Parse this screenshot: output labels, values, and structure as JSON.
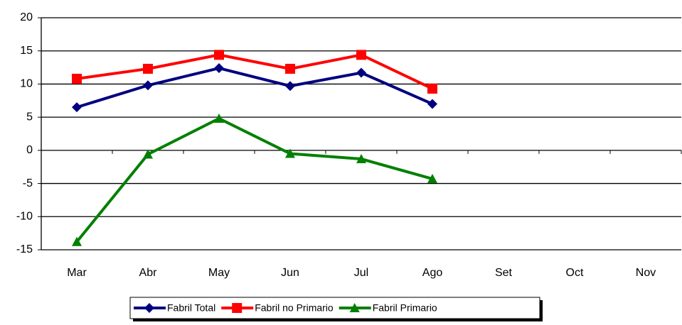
{
  "chart_data": {
    "type": "line",
    "categories": [
      "Mar",
      "Abr",
      "May",
      "Jun",
      "Jul",
      "Ago",
      "Set",
      "Oct",
      "Nov"
    ],
    "series": [
      {
        "name": "Fabril Total",
        "color": "#000080",
        "marker": "diamond",
        "values": [
          6.5,
          9.8,
          12.4,
          9.7,
          11.7,
          7.0,
          null,
          null,
          null
        ]
      },
      {
        "name": "Fabril no Primario",
        "color": "#ff0000",
        "marker": "square",
        "values": [
          10.8,
          12.3,
          14.4,
          12.3,
          14.4,
          9.3,
          null,
          null,
          null
        ]
      },
      {
        "name": "Fabril Primario",
        "color": "#008000",
        "marker": "triangle",
        "values": [
          -13.8,
          -0.6,
          4.8,
          -0.5,
          -1.3,
          -4.3,
          null,
          null,
          null
        ]
      }
    ],
    "ylim": [
      -15,
      20
    ],
    "yticks": [
      -15,
      -10,
      -5,
      0,
      5,
      10,
      15,
      20
    ],
    "grid": true,
    "legend": "bottom"
  }
}
